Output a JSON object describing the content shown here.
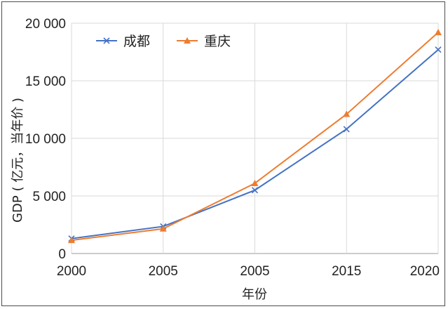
{
  "chart_data": {
    "type": "line",
    "title": "",
    "xlabel": "年份",
    "ylabel": "GDP ( 亿元，当年价 )",
    "categories": [
      "2000",
      "2005",
      "2005",
      "2015",
      "2020"
    ],
    "ylim": [
      0,
      20000
    ],
    "yticks": [
      0,
      5000,
      10000,
      15000,
      20000
    ],
    "ytick_labels": [
      "0",
      "5 000",
      "10 000",
      "15 000",
      "20 000"
    ],
    "grid": {
      "vertical": true,
      "horizontal": true
    },
    "legend_position": "top-left",
    "series": [
      {
        "name": "成都",
        "values": [
          1300,
          2350,
          5500,
          10800,
          17700
        ],
        "color": "#4472c4",
        "marker": "x"
      },
      {
        "name": "重庆",
        "values": [
          1150,
          2150,
          6100,
          12100,
          19200
        ],
        "color": "#ed7d31",
        "marker": "triangle"
      }
    ]
  }
}
